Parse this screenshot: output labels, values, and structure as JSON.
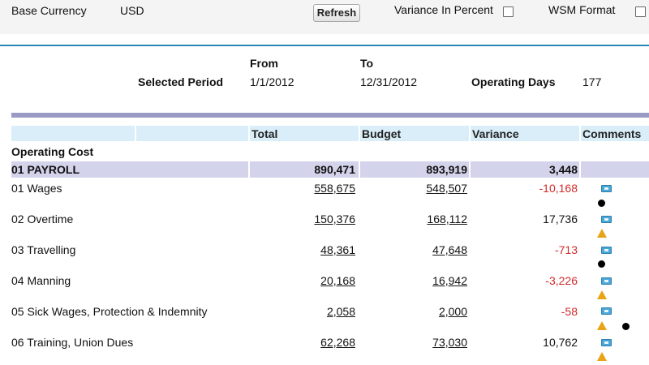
{
  "header": {
    "base_currency_label": "Base Currency",
    "base_currency_value": "USD",
    "refresh_label": "Refresh",
    "variance_percent_label": "Variance In Percent",
    "wsm_format_label": "WSM Format"
  },
  "period": {
    "from_label": "From",
    "to_label": "To",
    "selected_period_label": "Selected Period",
    "from_value": "1/1/2012",
    "to_value": "12/31/2012",
    "operating_days_label": "Operating Days",
    "operating_days_value": "177"
  },
  "table": {
    "columns": [
      "Total",
      "Budget",
      "Variance",
      "Comments"
    ],
    "section_title": "Operating Cost",
    "group": {
      "label": "01 PAYROLL",
      "total": "890,471",
      "budget": "893,919",
      "variance": "3,448"
    },
    "rows": [
      {
        "label": "01 Wages",
        "total": "558,675",
        "budget": "548,507",
        "variance": "-10,168"
      },
      {
        "label": "02 Overtime",
        "total": "150,376",
        "budget": "168,112",
        "variance": "17,736"
      },
      {
        "label": "03 Travelling",
        "total": "48,361",
        "budget": "47,648",
        "variance": "-713"
      },
      {
        "label": "04 Manning",
        "total": "20,168",
        "budget": "16,942",
        "variance": "-3,226"
      },
      {
        "label": "05 Sick Wages, Protection & Indemnity",
        "total": "2,058",
        "budget": "2,000",
        "variance": "-58"
      },
      {
        "label": "06 Training, Union Dues",
        "total": "62,268",
        "budget": "73,030",
        "variance": "10,762"
      }
    ]
  },
  "colors": {
    "negative": "#d12a2a",
    "header_band": "#d9eef9",
    "group_band": "#d3d3ec",
    "accent_rule": "#2a86b3"
  },
  "icons": {
    "comment": "comment-icon",
    "warning": "warning-icon",
    "attachment_dot": "dot-icon"
  }
}
